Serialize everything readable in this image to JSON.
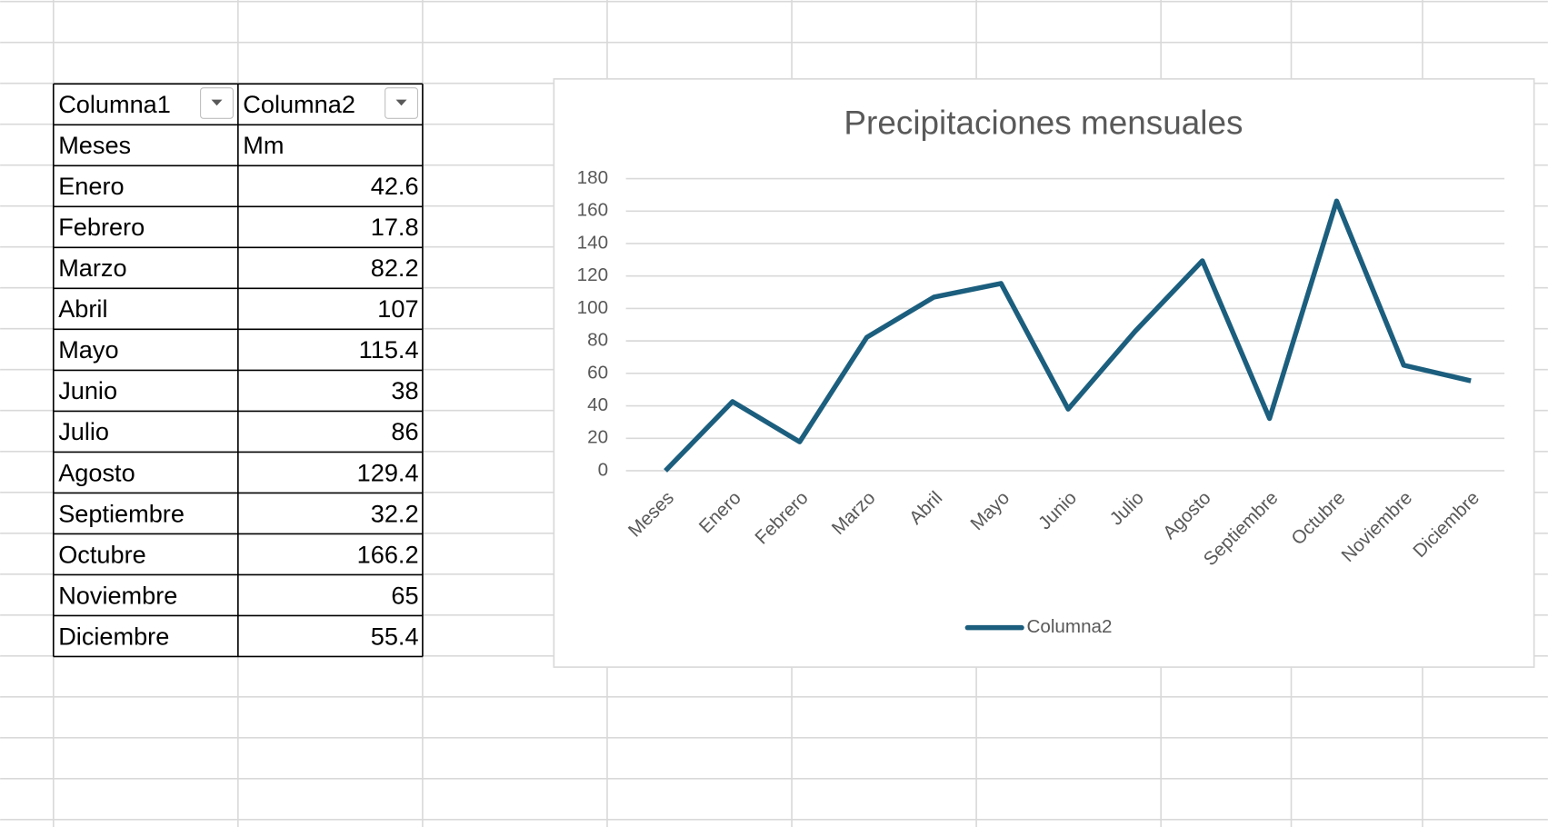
{
  "table": {
    "header": [
      "Columna1",
      "Columna2"
    ],
    "rows": [
      [
        "Meses",
        "Mm"
      ],
      [
        "Enero",
        42.6
      ],
      [
        "Febrero",
        17.8
      ],
      [
        "Marzo",
        82.2
      ],
      [
        "Abril",
        107
      ],
      [
        "Mayo",
        115.4
      ],
      [
        "Junio",
        38
      ],
      [
        "Julio",
        86
      ],
      [
        "Agosto",
        129.4
      ],
      [
        "Septiembre",
        32.2
      ],
      [
        "Octubre",
        166.2
      ],
      [
        "Noviembre",
        65
      ],
      [
        "Diciembre",
        55.4
      ]
    ]
  },
  "chart_data": {
    "type": "line",
    "title": "Precipitaciones mensuales",
    "categories": [
      "Meses",
      "Enero",
      "Febrero",
      "Marzo",
      "Abril",
      "Mayo",
      "Junio",
      "Julio",
      "Agosto",
      "Septiembre",
      "Octubre",
      "Noviembre",
      "Diciembre"
    ],
    "series": [
      {
        "name": "Columna2",
        "color": "#1b5e7e",
        "values": [
          0,
          42.6,
          17.8,
          82.2,
          107,
          115.4,
          38,
          86,
          129.4,
          32.2,
          166.2,
          65,
          55.4
        ]
      }
    ],
    "ylim": [
      0,
      180
    ],
    "yticks": [
      0,
      20,
      40,
      60,
      80,
      100,
      120,
      140,
      160,
      180
    ],
    "grid": true,
    "legend": "bottom"
  }
}
